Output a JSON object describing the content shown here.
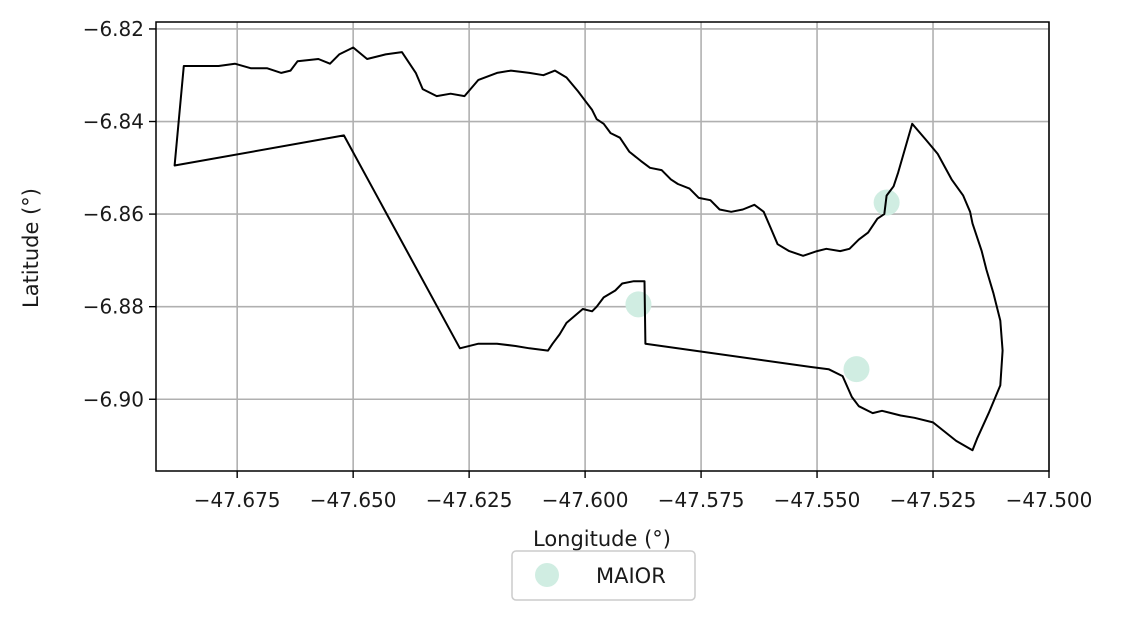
{
  "chart_data": {
    "type": "map",
    "xlabel": "Longitude (°)",
    "ylabel": "Latitude (°)",
    "xlim": [
      -47.6925,
      -47.5
    ],
    "ylim": [
      -6.9155,
      -6.8185
    ],
    "xticks": [
      -47.675,
      -47.65,
      -47.625,
      -47.6,
      -47.575,
      -47.55,
      -47.525,
      -47.5
    ],
    "xtick_labels": [
      "−47.675",
      "−47.650",
      "−47.625",
      "−47.600",
      "−47.575",
      "−47.550",
      "−47.525",
      "−47.500"
    ],
    "yticks": [
      -6.82,
      -6.84,
      -6.86,
      -6.88,
      -6.9
    ],
    "ytick_labels": [
      "−6.82",
      "−6.84",
      "−6.86",
      "−6.88",
      "−6.90"
    ],
    "grid": true,
    "legend": {
      "placement": "bottom-center",
      "entries": [
        {
          "label": "MAIOR",
          "color": "#d0ede2",
          "marker": "circle"
        }
      ]
    },
    "colors": {
      "boundary": "#000000",
      "fill": "#d0ede2",
      "grid": "#b0b0b0"
    },
    "points": [
      {
        "label": "MAIOR",
        "lon": -47.535,
        "lat": -6.8575
      },
      {
        "label": "MAIOR",
        "lon": -47.5885,
        "lat": -6.8795
      },
      {
        "label": "MAIOR",
        "lon": -47.5415,
        "lat": -6.8935
      }
    ],
    "boundary": [
      [
        -47.6885,
        -6.8495
      ],
      [
        -47.6865,
        -6.828
      ],
      [
        -47.679,
        -6.828
      ],
      [
        -47.6755,
        -6.8275
      ],
      [
        -47.672,
        -6.8285
      ],
      [
        -47.6685,
        -6.8285
      ],
      [
        -47.6655,
        -6.8295
      ],
      [
        -47.6635,
        -6.829
      ],
      [
        -47.662,
        -6.827
      ],
      [
        -47.6575,
        -6.8265
      ],
      [
        -47.655,
        -6.8275
      ],
      [
        -47.653,
        -6.8255
      ],
      [
        -47.65,
        -6.824
      ],
      [
        -47.647,
        -6.8265
      ],
      [
        -47.643,
        -6.8255
      ],
      [
        -47.6395,
        -6.825
      ],
      [
        -47.6365,
        -6.8295
      ],
      [
        -47.635,
        -6.833
      ],
      [
        -47.632,
        -6.8345
      ],
      [
        -47.629,
        -6.834
      ],
      [
        -47.626,
        -6.8345
      ],
      [
        -47.623,
        -6.831
      ],
      [
        -47.619,
        -6.8295
      ],
      [
        -47.616,
        -6.829
      ],
      [
        -47.612,
        -6.8295
      ],
      [
        -47.609,
        -6.83
      ],
      [
        -47.6065,
        -6.829
      ],
      [
        -47.604,
        -6.8305
      ],
      [
        -47.6015,
        -6.8335
      ],
      [
        -47.6,
        -6.8355
      ],
      [
        -47.5985,
        -6.8375
      ],
      [
        -47.5975,
        -6.8395
      ],
      [
        -47.596,
        -6.8405
      ],
      [
        -47.5945,
        -6.8425
      ],
      [
        -47.5925,
        -6.8435
      ],
      [
        -47.5905,
        -6.8465
      ],
      [
        -47.588,
        -6.8485
      ],
      [
        -47.586,
        -6.85
      ],
      [
        -47.5835,
        -6.8505
      ],
      [
        -47.5815,
        -6.8525
      ],
      [
        -47.58,
        -6.8535
      ],
      [
        -47.5775,
        -6.8545
      ],
      [
        -47.5755,
        -6.8565
      ],
      [
        -47.573,
        -6.857
      ],
      [
        -47.571,
        -6.859
      ],
      [
        -47.5685,
        -6.8595
      ],
      [
        -47.566,
        -6.859
      ],
      [
        -47.5635,
        -6.858
      ],
      [
        -47.5615,
        -6.8595
      ],
      [
        -47.56,
        -6.863
      ],
      [
        -47.5585,
        -6.8665
      ],
      [
        -47.556,
        -6.868
      ],
      [
        -47.553,
        -6.869
      ],
      [
        -47.55,
        -6.868
      ],
      [
        -47.548,
        -6.8675
      ],
      [
        -47.545,
        -6.868
      ],
      [
        -47.543,
        -6.8675
      ],
      [
        -47.541,
        -6.8655
      ],
      [
        -47.539,
        -6.864
      ],
      [
        -47.537,
        -6.861
      ],
      [
        -47.5355,
        -6.86
      ],
      [
        -47.535,
        -6.856
      ],
      [
        -47.5335,
        -6.854
      ],
      [
        -47.5325,
        -6.851
      ],
      [
        -47.5295,
        -6.8405
      ],
      [
        -47.5265,
        -6.844
      ],
      [
        -47.524,
        -6.847
      ],
      [
        -47.521,
        -6.8525
      ],
      [
        -47.5185,
        -6.856
      ],
      [
        -47.517,
        -6.8595
      ],
      [
        -47.5165,
        -6.862
      ],
      [
        -47.5145,
        -6.868
      ],
      [
        -47.5135,
        -6.872
      ],
      [
        -47.512,
        -6.877
      ],
      [
        -47.5105,
        -6.883
      ],
      [
        -47.51,
        -6.8895
      ],
      [
        -47.5105,
        -6.897
      ],
      [
        -47.513,
        -6.903
      ],
      [
        -47.5155,
        -6.9085
      ],
      [
        -47.5165,
        -6.911
      ],
      [
        -47.52,
        -6.909
      ],
      [
        -47.525,
        -6.905
      ],
      [
        -47.529,
        -6.904
      ],
      [
        -47.532,
        -6.9035
      ],
      [
        -47.536,
        -6.9025
      ],
      [
        -47.538,
        -6.903
      ],
      [
        -47.541,
        -6.9015
      ],
      [
        -47.5425,
        -6.8995
      ],
      [
        -47.5445,
        -6.895
      ],
      [
        -47.5475,
        -6.8935
      ],
      [
        -47.5515,
        -6.893
      ],
      [
        -47.587,
        -6.888
      ],
      [
        -47.5872,
        -6.8745
      ],
      [
        -47.5895,
        -6.8745
      ],
      [
        -47.592,
        -6.875
      ],
      [
        -47.5935,
        -6.8765
      ],
      [
        -47.596,
        -6.878
      ],
      [
        -47.5975,
        -6.88
      ],
      [
        -47.5985,
        -6.881
      ],
      [
        -47.6005,
        -6.8805
      ],
      [
        -47.604,
        -6.8835
      ],
      [
        -47.6055,
        -6.886
      ],
      [
        -47.607,
        -6.888
      ],
      [
        -47.608,
        -6.8895
      ],
      [
        -47.612,
        -6.889
      ],
      [
        -47.615,
        -6.8885
      ],
      [
        -47.619,
        -6.888
      ],
      [
        -47.623,
        -6.888
      ],
      [
        -47.627,
        -6.889
      ],
      [
        -47.652,
        -6.843
      ]
    ]
  }
}
